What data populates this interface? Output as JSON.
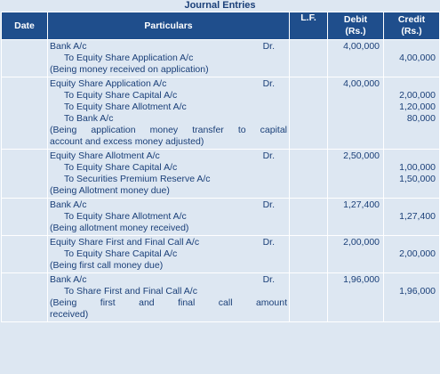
{
  "title": "Journal Entries",
  "headers": {
    "date": "Date",
    "particulars": "Particulars",
    "lf": "L.F.",
    "debit": "Debit",
    "debit_unit": "(Rs.)",
    "credit": "Credit",
    "credit_unit": "(Rs.)"
  },
  "entries": [
    {
      "debit_account": "Bank A/c",
      "dr": "Dr.",
      "debit_amount": "4,00,000",
      "credits": [
        {
          "account": "To Equity Share Application A/c",
          "amount": "4,00,000"
        }
      ],
      "narration": [
        "(Being money received on application)"
      ]
    },
    {
      "debit_account": "Equity Share Application A/c",
      "dr": "Dr.",
      "debit_amount": "4,00,000",
      "credits": [
        {
          "account": "To Equity Share Capital A/c",
          "amount": "2,00,000"
        },
        {
          "account": "To Equity Share Allotment A/c",
          "amount": "1,20,000"
        },
        {
          "account": "To Bank A/c",
          "amount": "80,000"
        }
      ],
      "narration": [
        "(Being application money transfer to capital",
        "account and excess money adjusted)"
      ]
    },
    {
      "debit_account": "Equity Share Allotment A/c",
      "dr": "Dr.",
      "debit_amount": "2,50,000",
      "credits": [
        {
          "account": "To Equity Share Capital A/c",
          "amount": "1,00,000"
        },
        {
          "account": "To Securities Premium Reserve A/c",
          "amount": "1,50,000"
        }
      ],
      "narration": [
        "(Being Allotment money due)"
      ]
    },
    {
      "debit_account": "Bank A/c",
      "dr": "Dr.",
      "debit_amount": "1,27,400",
      "credits": [
        {
          "account": "To Equity Share Allotment A/c",
          "amount": "1,27,400"
        }
      ],
      "narration": [
        "(Being allotment money received)"
      ]
    },
    {
      "debit_account": "Equity Share First and Final Call A/c",
      "dr": "Dr.",
      "debit_amount": "2,00,000",
      "credits": [
        {
          "account": "To Equity Share Capital A/c",
          "amount": "2,00,000"
        }
      ],
      "narration": [
        "(Being first call money due)"
      ]
    },
    {
      "debit_account": "Bank A/c",
      "dr": "Dr.",
      "debit_amount": "1,96,000",
      "credits": [
        {
          "account": "To Share First and Final Call A/c",
          "amount": "1,96,000"
        }
      ],
      "narration": [
        "(Being first and final call amount",
        "received)"
      ]
    }
  ]
}
